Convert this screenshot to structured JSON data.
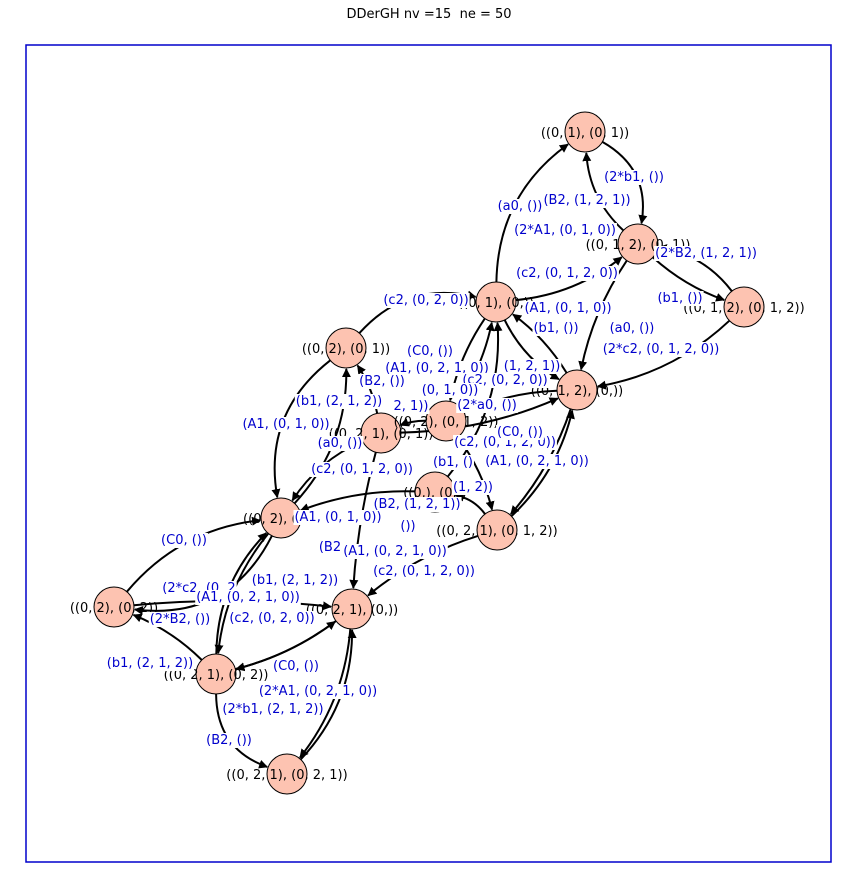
{
  "title": "DDerGH nv =15  ne = 50",
  "colors": {
    "frame": "#0000cc",
    "node_fill": "#fdc3b1",
    "node_stroke": "#000000",
    "edge": "#000000",
    "edge_label": "#0000cc"
  },
  "nodes": [
    {
      "id": "n01",
      "label": "((0, 1), (0, 1))"
    },
    {
      "id": "n12",
      "label": "((0, 1, 2), (0, 1))"
    },
    {
      "id": "n12b",
      "label": "((0, 1, 2), (0, 1, 2))"
    },
    {
      "id": "n1",
      "label": "((0, 1), (0,))"
    },
    {
      "id": "n02",
      "label": "((0, 2), (0, 1))"
    },
    {
      "id": "n120",
      "label": "((0, 1, 2), (0,))"
    },
    {
      "id": "n21",
      "label": "((0, 2, 1), (0, 1))"
    },
    {
      "id": "n02b",
      "label": "((0, 2), (0, 1, 2))"
    },
    {
      "id": "n0",
      "label": "((0,), (0,))"
    },
    {
      "id": "n20",
      "label": "((0, 2), (0,))"
    },
    {
      "id": "n212",
      "label": "((0, 2, 1), (0, 1, 2))"
    },
    {
      "id": "n022",
      "label": "((0, 2), (0, 2))"
    },
    {
      "id": "n210",
      "label": "((0, 2, 1), (0,))"
    },
    {
      "id": "n2102",
      "label": "((0, 2, 1), (0, 2))"
    },
    {
      "id": "n2121",
      "label": "((0, 2, 1), (0, 2, 1))"
    }
  ],
  "edge_labels": [
    "(a0, ())",
    "(B2, (1, 2, 1))",
    "(2*b1, ())",
    "(2*A1, (0, 1, 0))",
    "(2*B2, (1, 2, 1))",
    "(c2, (0, 1, 2, 0))",
    "(b1, ())",
    "(c2, (0, 2, 0))",
    "(A1, (0, 1, 0))",
    "(b1, ())",
    "(a0, ())",
    "(2*c2, (0, 1, 2, 0))",
    "(C0, ())",
    "(A1, (0, 2, 1, 0))",
    "(1, 2, 1))",
    "(c2, (0, 2, 0))",
    "(B2, ())",
    "(0, 1, 0))",
    "(b1, (2, 1, 2))",
    "2, 1))",
    "(2*a0, ())",
    "(A1, (0, 1, 0))",
    "(a0, ())",
    "(c2, (0, 1, 2, 0))",
    "(C0, ())",
    "(c2, (0, 1, 2, 0))",
    "(b1, ()",
    "(A1, (0, 2, 1, 0))",
    "(1, 2))",
    "(B2, (1, 2, 1))",
    "(A1, (0, 1, 0))",
    "(C0, ())",
    "(B2",
    "())",
    "(A1, (0, 2, 1, 0))",
    "(c2, (0, 1, 2, 0))",
    "(2*c2, (0, 2",
    "(b1, (2, 1, 2))",
    "(A1, (0, 2, 1, 0))",
    "(2*B2, ())",
    "(c2, (0, 2, 0))",
    "(b1, (2, 1, 2))",
    "(C0, ())",
    "(2*A1, (0, 2, 1, 0))",
    "(2*b1, (2, 1, 2))",
    "(B2, ())"
  ]
}
